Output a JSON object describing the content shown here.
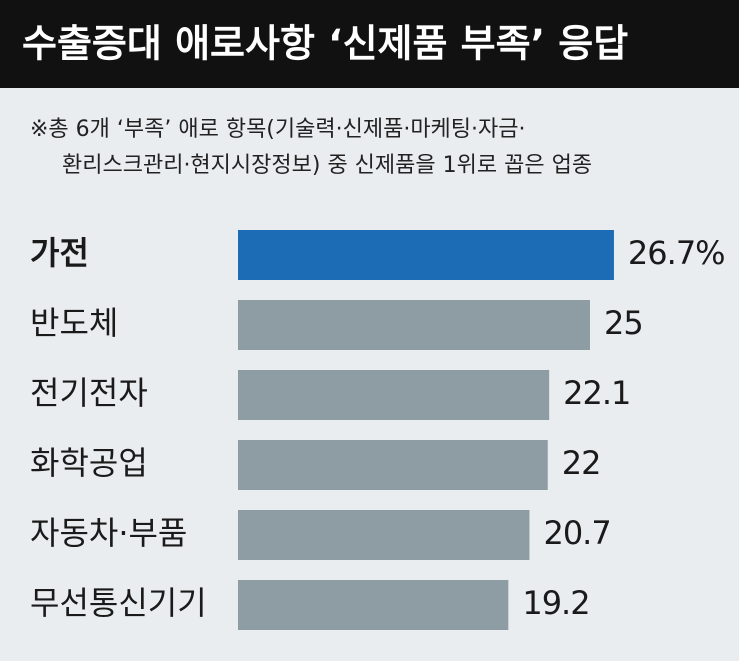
{
  "chart_data": {
    "type": "bar",
    "orientation": "horizontal",
    "title": "수출증대 애로사항 ‘신제품 부족’ 응답",
    "subtitle": [
      "※총 6개 ‘부족’ 애로 항목(기술력·신제품·마케팅·자금·",
      "환리스크관리·현지시장정보) 중 신제품을 1위로 꼽은 업종"
    ],
    "categories": [
      "가전",
      "반도체",
      "전기전자",
      "화학공업",
      "자동차·부품",
      "무선통신기기"
    ],
    "values": [
      26.7,
      25,
      22.1,
      22,
      20.7,
      19.2
    ],
    "value_labels": [
      "26.7%",
      "25",
      "22.1",
      "22",
      "20.7",
      "19.2"
    ],
    "colors": [
      "#1b6cb4",
      "#8e9ca4",
      "#8e9ca4",
      "#8e9ca4",
      "#8e9ca4",
      "#8e9ca4"
    ]
  }
}
